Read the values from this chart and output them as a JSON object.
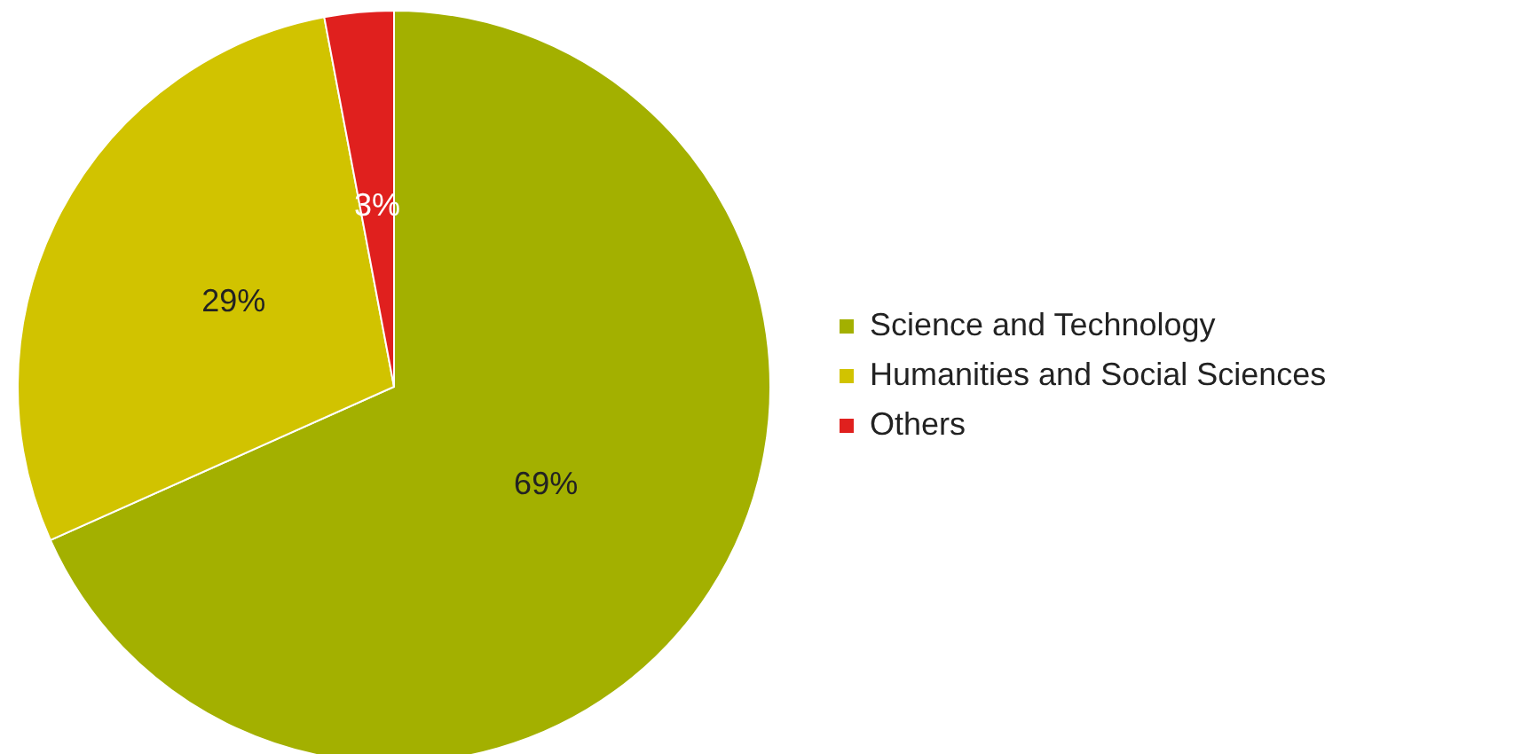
{
  "chart_data": {
    "type": "pie",
    "categories": [
      "Science and Technology",
      "Humanities and Social Sciences",
      "Others"
    ],
    "values": [
      69,
      29,
      3
    ],
    "value_labels": [
      "69%",
      "29%",
      "3%"
    ],
    "colors": [
      "#a3b000",
      "#d1c300",
      "#e0201e"
    ],
    "legend": "right"
  }
}
